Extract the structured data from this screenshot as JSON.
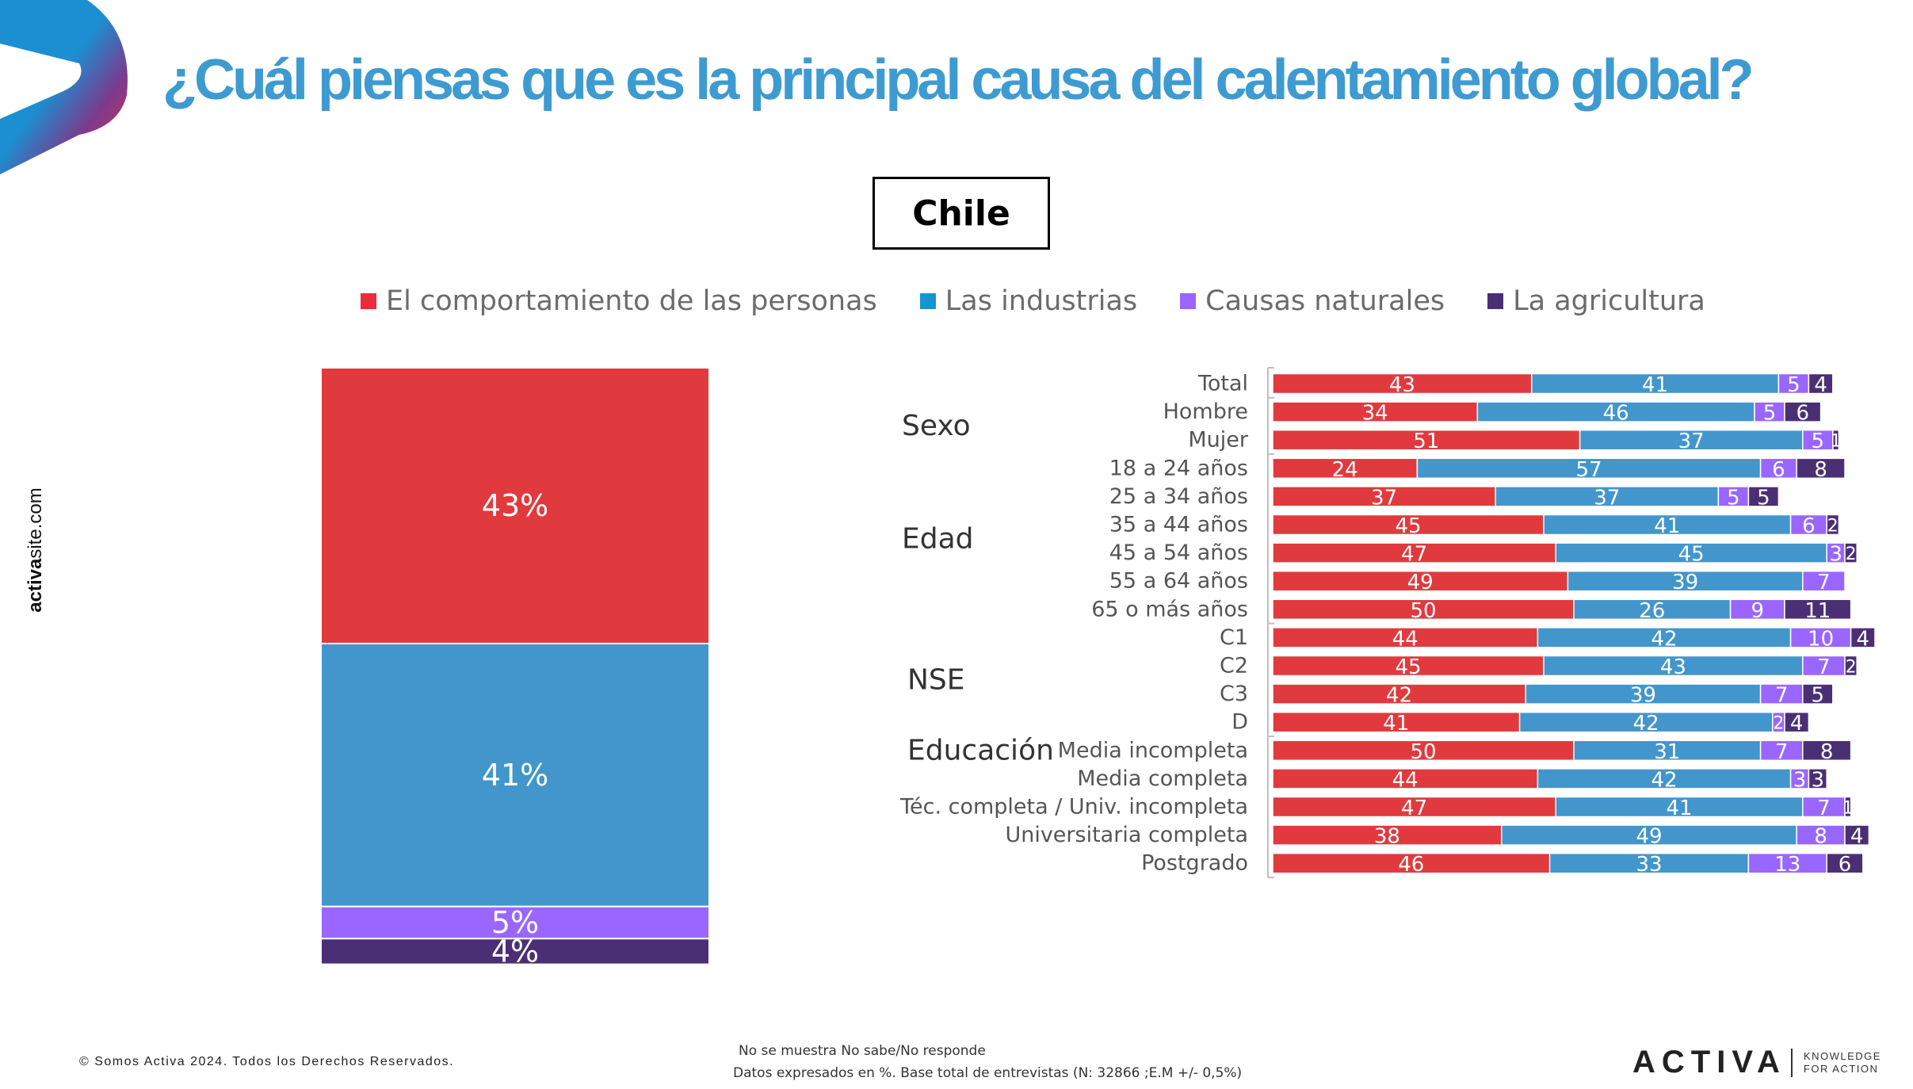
{
  "title": "¿Cuál piensas que es la principal causa del calentamiento global?",
  "country_label": "Chile",
  "side_url": {
    "bold": "activa",
    "rest": "site.com"
  },
  "copyright": "© Somos Activa 2024. Todos los Derechos Reservados.",
  "footnote": {
    "line1": "No se muestra No sabe/No responde",
    "line2": "Datos expresados en %. Base total de entrevistas (N: 32866 ;E.M +/- 0,5%)"
  },
  "brand": {
    "name": "ACTIVA",
    "tagline_1": "KNOWLEDGE",
    "tagline_2": "FOR ACTION"
  },
  "colors": {
    "personas": "#e03a3e",
    "industrias": "#4396cb",
    "naturales": "#9966ff",
    "agricultura": "#4b2f74",
    "logo_blue": "#1b8fd1",
    "logo_red": "#ee2a3c"
  },
  "legend": [
    {
      "label": "El comportamiento de las personas",
      "color": "#e82e3a"
    },
    {
      "label": "Las industrias",
      "color": "#1496d1"
    },
    {
      "label": "Causas naturales",
      "color": "#9966ff"
    },
    {
      "label": "La agricultura",
      "color": "#4b2f74"
    }
  ],
  "chart_data": [
    {
      "type": "bar",
      "stacked": true,
      "orientation": "vertical",
      "categories": [
        "Chile"
      ],
      "series": [
        {
          "name": "El comportamiento de las personas",
          "values": [
            43
          ],
          "labels": [
            "43%"
          ]
        },
        {
          "name": "Las industrias",
          "values": [
            41
          ],
          "labels": [
            "41%"
          ]
        },
        {
          "name": "Causas naturales",
          "values": [
            5
          ],
          "labels": [
            "5%"
          ]
        },
        {
          "name": "La agricultura",
          "values": [
            4
          ],
          "labels": [
            "4%"
          ]
        }
      ]
    },
    {
      "type": "bar",
      "stacked": true,
      "orientation": "horizontal",
      "groups": [
        {
          "label": "",
          "rows": [
            {
              "label": "Total",
              "values": [
                43,
                41,
                5,
                4
              ]
            }
          ]
        },
        {
          "label": "Sexo",
          "rows": [
            {
              "label": "Hombre",
              "values": [
                34,
                46,
                5,
                6
              ]
            },
            {
              "label": "Mujer",
              "values": [
                51,
                37,
                5,
                1
              ]
            }
          ]
        },
        {
          "label": "Edad",
          "rows": [
            {
              "label": "18 a 24 años",
              "values": [
                24,
                57,
                6,
                8
              ]
            },
            {
              "label": "25 a 34 años",
              "values": [
                37,
                37,
                5,
                5
              ]
            },
            {
              "label": "35 a 44 años",
              "values": [
                45,
                41,
                6,
                2
              ]
            },
            {
              "label": "45 a 54 años",
              "values": [
                47,
                45,
                3,
                2
              ]
            },
            {
              "label": "55 a 64 años",
              "values": [
                49,
                39,
                7,
                null
              ]
            },
            {
              "label": "65 o más años",
              "values": [
                50,
                26,
                9,
                11
              ]
            }
          ]
        },
        {
          "label": "NSE",
          "rows": [
            {
              "label": "C1",
              "values": [
                44,
                42,
                10,
                4
              ]
            },
            {
              "label": "C2",
              "values": [
                45,
                43,
                7,
                2
              ]
            },
            {
              "label": "C3",
              "values": [
                42,
                39,
                7,
                5
              ]
            },
            {
              "label": "D",
              "values": [
                41,
                42,
                2,
                4
              ]
            }
          ]
        },
        {
          "label": "Educación",
          "rows": [
            {
              "label": "Media incompleta",
              "values": [
                50,
                31,
                7,
                8
              ]
            },
            {
              "label": "Media completa",
              "values": [
                44,
                42,
                3,
                3
              ]
            },
            {
              "label": "Téc. completa / Univ. incompleta",
              "values": [
                47,
                41,
                7,
                1
              ]
            },
            {
              "label": "Universitaria completa",
              "values": [
                38,
                49,
                8,
                4
              ]
            },
            {
              "label": "Postgrado",
              "values": [
                46,
                33,
                13,
                6
              ]
            }
          ]
        }
      ]
    }
  ]
}
